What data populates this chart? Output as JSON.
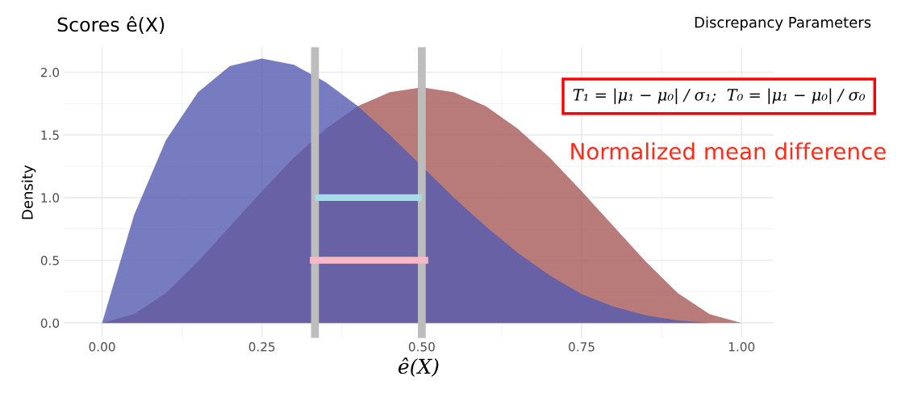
{
  "chart_data": {
    "type": "area",
    "title": "Scores ê(X)",
    "xlabel": "ê(X)",
    "ylabel": "Density",
    "x": [
      0,
      0.05,
      0.1,
      0.15,
      0.2,
      0.25,
      0.3,
      0.35,
      0.4,
      0.45,
      0.5,
      0.55,
      0.6,
      0.65,
      0.7,
      0.75,
      0.8,
      0.85,
      0.9,
      0.95,
      1
    ],
    "series": [
      {
        "color": "#a85a58",
        "values": [
          0,
          0.07,
          0.24,
          0.49,
          0.77,
          1.05,
          1.32,
          1.55,
          1.73,
          1.84,
          1.88,
          1.84,
          1.73,
          1.55,
          1.32,
          1.05,
          0.77,
          0.49,
          0.24,
          0.07,
          0
        ]
      },
      {
        "color": "#555bb0",
        "values": [
          0,
          0.86,
          1.46,
          1.84,
          2.05,
          2.11,
          2.06,
          1.92,
          1.73,
          1.5,
          1.25,
          1.0,
          0.77,
          0.56,
          0.38,
          0.23,
          0.13,
          0.06,
          0.02,
          0,
          0
        ]
      },
      {
        "type": "line",
        "color": "#a8dbe6",
        "x": [
          0.333,
          0.5
        ],
        "values": [
          1.0,
          1.0
        ]
      },
      {
        "type": "line",
        "color": "#f7b9c8",
        "x": [
          0.325,
          0.51
        ],
        "values": [
          0.5,
          0.5
        ]
      }
    ],
    "ref_lines": [
      {
        "axis": "x",
        "value": 0.333,
        "color": "#bdbdbd"
      },
      {
        "axis": "x",
        "value": 0.5,
        "color": "#bdbdbd"
      }
    ],
    "xlim": [
      -0.06,
      1.05
    ],
    "ylim": [
      -0.12,
      2.2
    ],
    "xticks": [
      {
        "value": 0,
        "label": "0.00"
      },
      0.25,
      {
        "value": 0.5,
        "label": "0.50"
      },
      0.75,
      {
        "value": 1,
        "label": "1.00"
      }
    ],
    "yticks": [
      {
        "value": 0,
        "label": "0.0"
      },
      0.5,
      {
        "value": 1,
        "label": "1.0"
      },
      1.5,
      {
        "value": 2,
        "label": "2.0"
      }
    ],
    "grid": true,
    "legend": false,
    "annotations": [
      "Discrepancy Parameters",
      "T₁ = |μ₁ − μ₀| / σ₁;  T₀ = |μ₁ − μ₀| / σ₀",
      "Normalized mean difference"
    ]
  }
}
